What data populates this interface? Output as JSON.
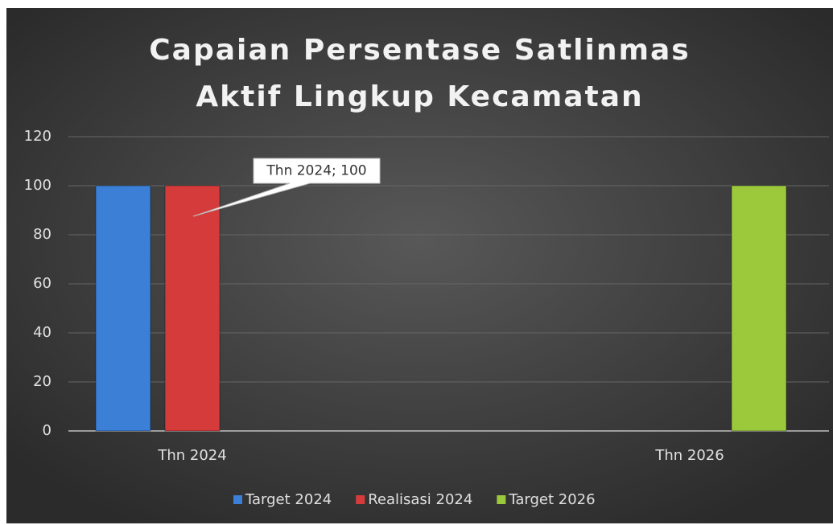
{
  "chart_data": {
    "type": "bar",
    "title": "Capaian Persentase Satlinmas Aktif Lingkup Kecamatan",
    "categories": [
      "Thn 2024",
      "Thn 2026"
    ],
    "series": [
      {
        "name": "Target 2024",
        "color": "#3b7fd6",
        "values": [
          100,
          null
        ]
      },
      {
        "name": "Realisasi 2024",
        "color": "#d63b3b",
        "values": [
          100,
          null
        ],
        "value_labels": [
          "Thn 2024; 100",
          null
        ]
      },
      {
        "name": "Target 2026",
        "color": "#9cc83c",
        "values": [
          null,
          100
        ]
      }
    ],
    "ylim": [
      0,
      120
    ],
    "yticks": [
      0,
      20,
      40,
      60,
      80,
      100,
      120
    ],
    "grid": true,
    "legend": "bottom"
  }
}
